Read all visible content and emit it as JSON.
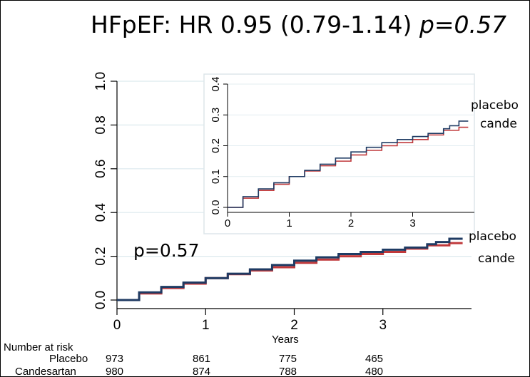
{
  "chart_data": [
    {
      "type": "line",
      "title_main": "HFpEF: HR 0.95 (0.79-1.14)",
      "title_p": "p=0.57",
      "annotation": "p=0.57",
      "xlabel": "Years",
      "xlim": [
        0,
        4
      ],
      "ylim": [
        0,
        1
      ],
      "xticks": [
        "0",
        "1",
        "2",
        "3"
      ],
      "yticks": [
        "0.0",
        "0.2",
        "0.4",
        "0.6",
        "0.8",
        "1.0"
      ],
      "series": [
        {
          "name": "placebo",
          "color": "#1f3b63",
          "x": [
            0,
            0.25,
            0.5,
            0.75,
            1,
            1.25,
            1.5,
            1.75,
            2,
            2.25,
            2.5,
            2.75,
            3,
            3.25,
            3.5,
            3.6,
            3.75,
            3.9
          ],
          "y": [
            0,
            0.035,
            0.06,
            0.08,
            0.1,
            0.12,
            0.14,
            0.16,
            0.18,
            0.195,
            0.21,
            0.22,
            0.23,
            0.24,
            0.255,
            0.265,
            0.28,
            0.28
          ]
        },
        {
          "name": "cande",
          "color": "#c0393b",
          "x": [
            0,
            0.25,
            0.5,
            0.75,
            1,
            1.25,
            1.5,
            1.75,
            2,
            2.25,
            2.5,
            2.75,
            3,
            3.25,
            3.5,
            3.75,
            3.9
          ],
          "y": [
            0,
            0.03,
            0.055,
            0.075,
            0.1,
            0.118,
            0.135,
            0.15,
            0.17,
            0.185,
            0.2,
            0.21,
            0.22,
            0.235,
            0.25,
            0.26,
            0.26
          ]
        }
      ],
      "legend": [
        "placebo",
        "cande"
      ],
      "risk_table": {
        "header": "Number at risk",
        "rows": [
          {
            "label": "Placebo",
            "values": [
              "973",
              "861",
              "775",
              "465"
            ]
          },
          {
            "label": "Candesartan",
            "values": [
              "980",
              "874",
              "788",
              "480"
            ]
          }
        ]
      }
    },
    {
      "type": "line",
      "xlim": [
        0,
        4
      ],
      "ylim": [
        0,
        0.4
      ],
      "xticks": [
        "0",
        "1",
        "2",
        "3"
      ],
      "yticks": [
        "0.0",
        "0.1",
        "0.2",
        "0.3",
        "0.4"
      ],
      "series_from": "main",
      "legend": [
        "placebo",
        "cande"
      ]
    }
  ]
}
